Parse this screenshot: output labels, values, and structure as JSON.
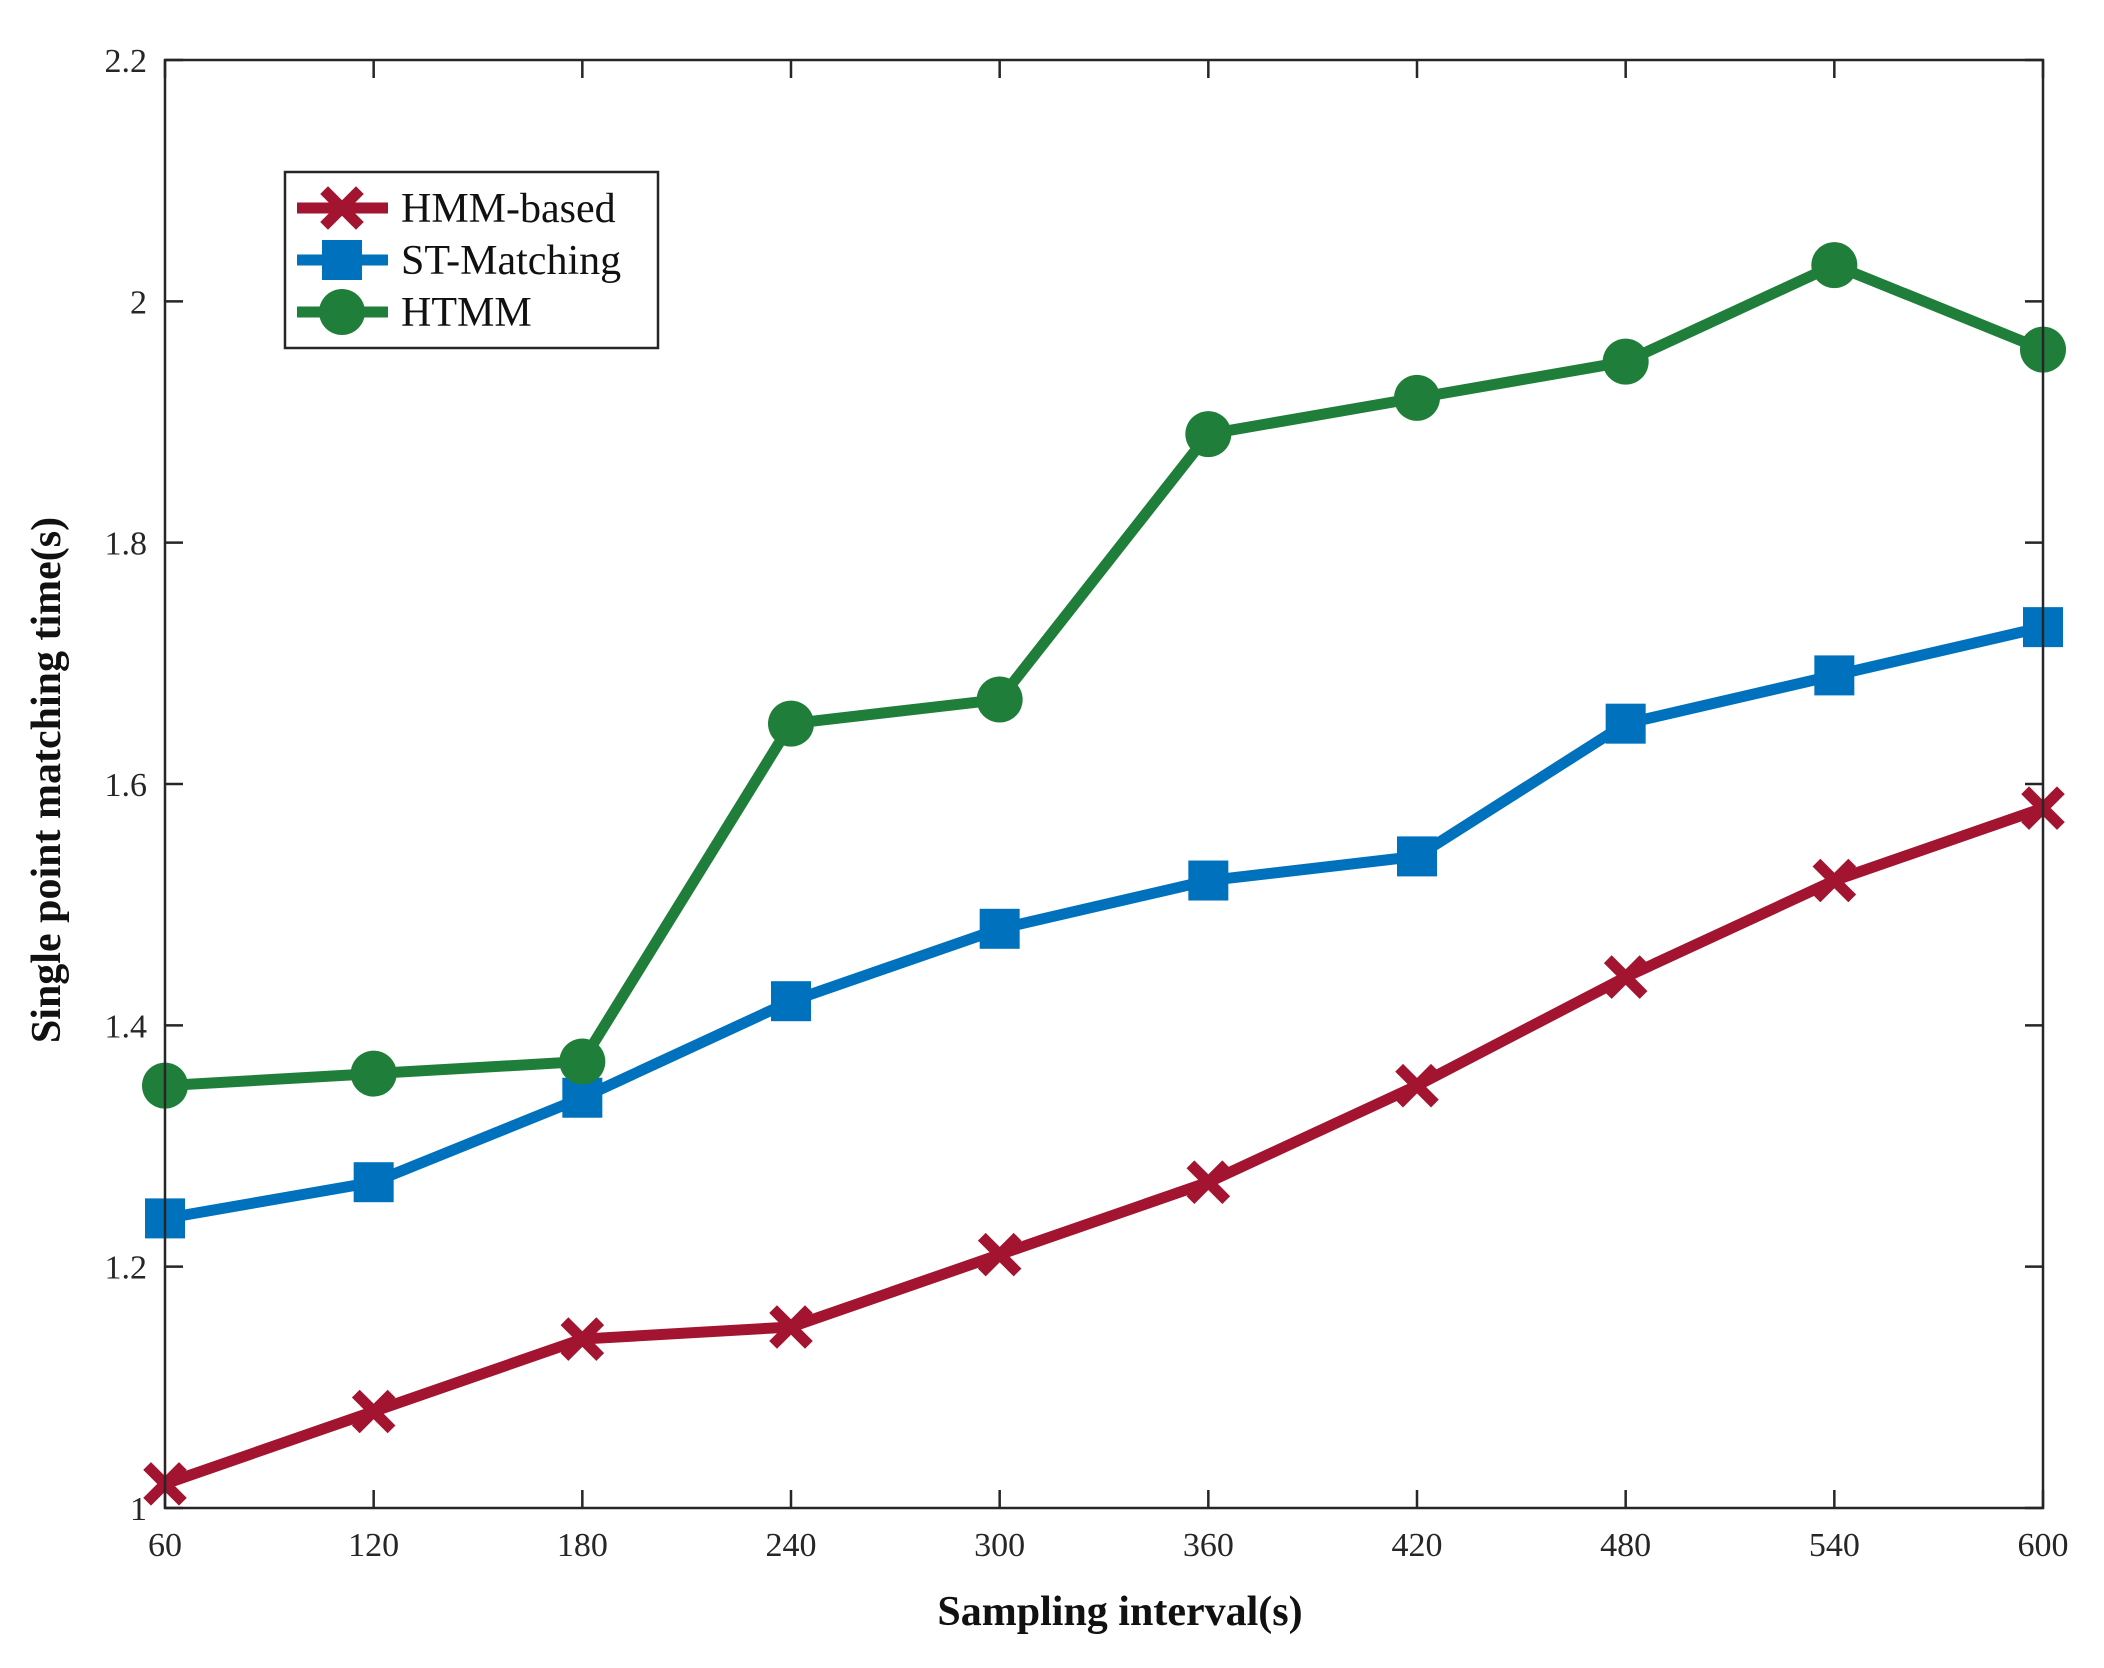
{
  "chart_data": {
    "type": "line",
    "title": "",
    "xlabel": "Sampling interval(s)",
    "ylabel": "Single point matching time(s)",
    "x": [
      60,
      120,
      180,
      240,
      300,
      360,
      420,
      480,
      540,
      600
    ],
    "xlim": [
      60,
      600
    ],
    "ylim": [
      1,
      2.2
    ],
    "xticks": [
      60,
      120,
      180,
      240,
      300,
      360,
      420,
      480,
      540,
      600
    ],
    "yticks": [
      1,
      1.2,
      1.4,
      1.6,
      1.8,
      2,
      2.2
    ],
    "xtick_labels": [
      "60",
      "120",
      "180",
      "240",
      "300",
      "360",
      "420",
      "480",
      "540",
      "600"
    ],
    "ytick_labels": [
      "1",
      "1.2",
      "1.4",
      "1.6",
      "1.8",
      "2",
      "2.2"
    ],
    "grid": false,
    "legend_position": "top-left",
    "series": [
      {
        "name": "HMM-based",
        "color": "#a2142f",
        "marker": "x",
        "values": [
          1.02,
          1.08,
          1.14,
          1.15,
          1.21,
          1.27,
          1.35,
          1.44,
          1.52,
          1.58
        ]
      },
      {
        "name": "ST-Matching",
        "color": "#0072bd",
        "marker": "square",
        "values": [
          1.24,
          1.27,
          1.34,
          1.42,
          1.48,
          1.52,
          1.54,
          1.65,
          1.69,
          1.73
        ]
      },
      {
        "name": "HTMM",
        "color": "#1f7f3a",
        "marker": "circle",
        "values": [
          1.35,
          1.36,
          1.37,
          1.65,
          1.67,
          1.89,
          1.92,
          1.95,
          2.03,
          1.96
        ]
      }
    ]
  }
}
